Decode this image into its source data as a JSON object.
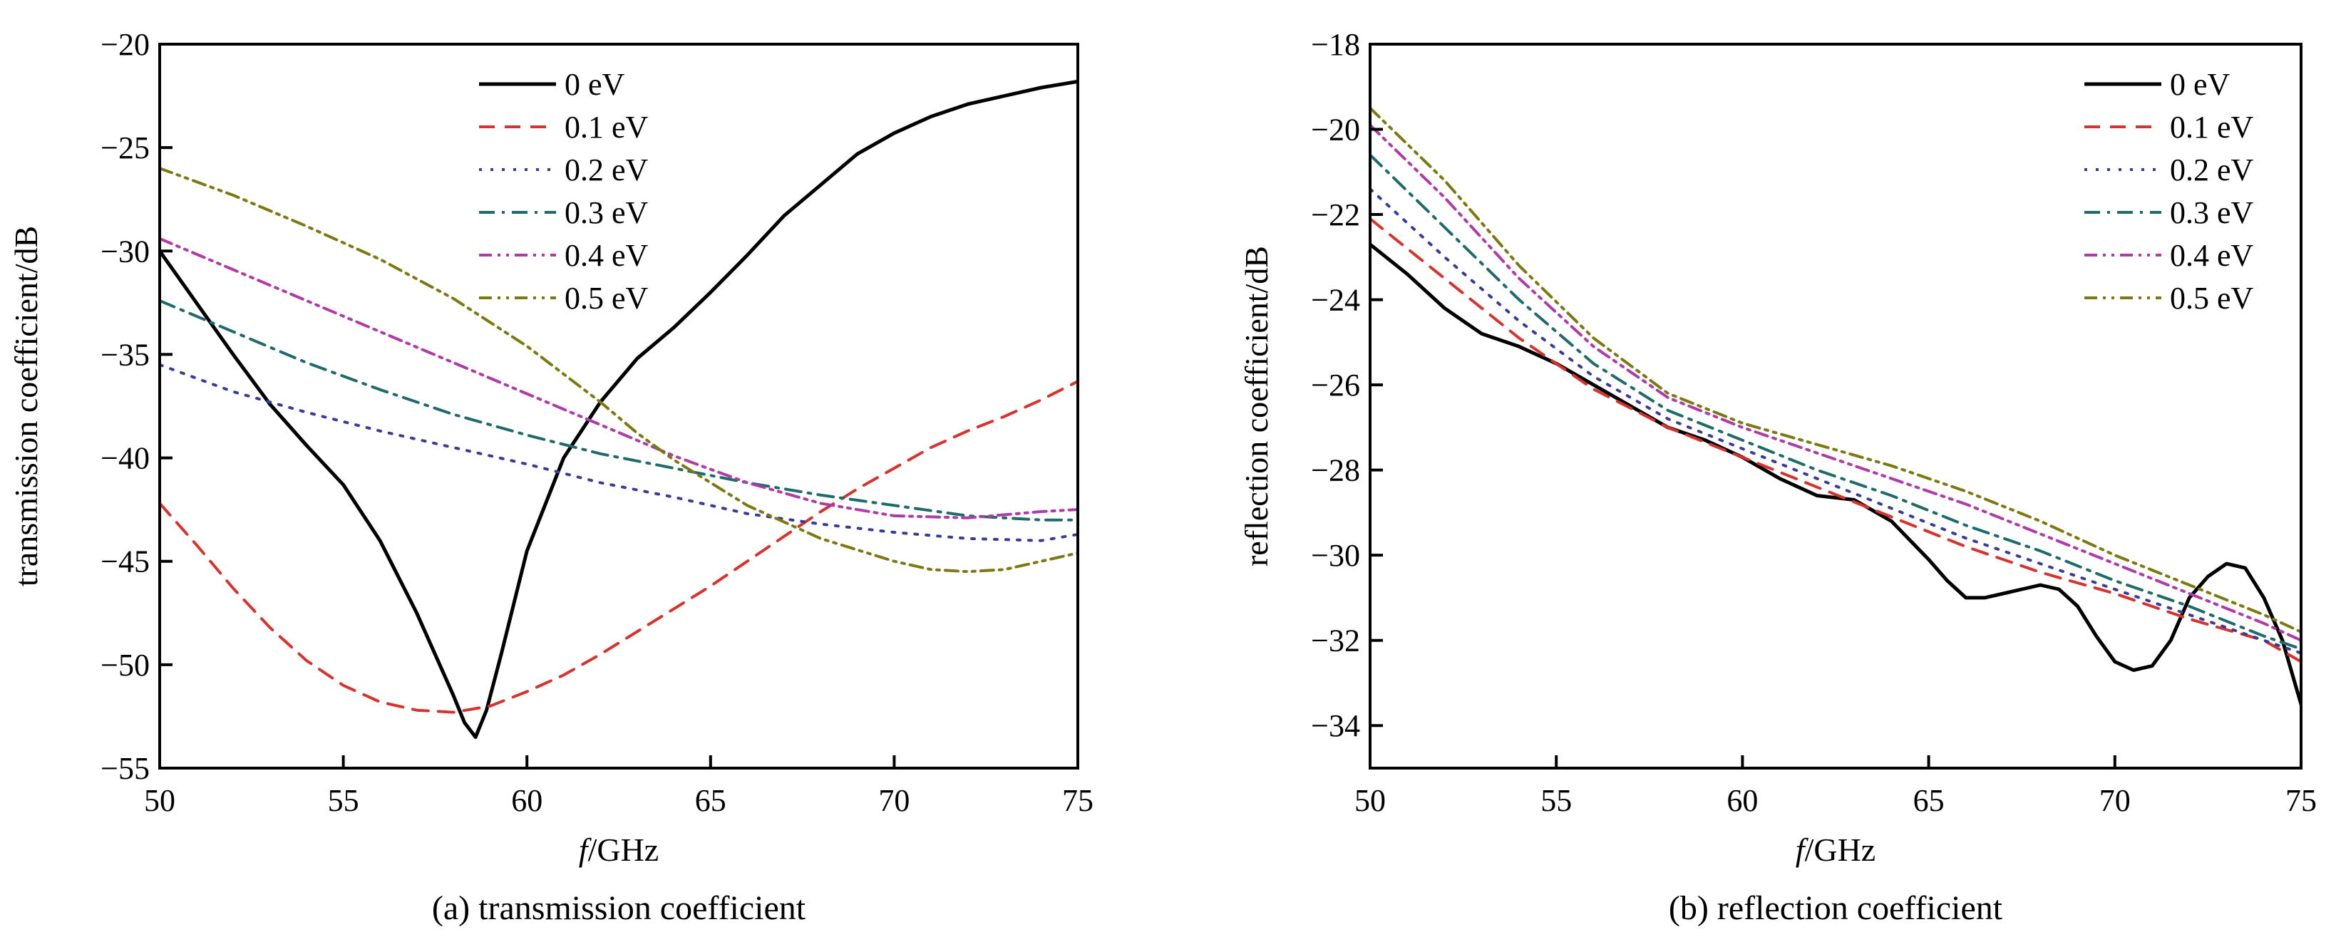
{
  "figure": {
    "colors": {
      "0 eV": "#000000",
      "0.1 eV": "#d9312b",
      "0.2 eV": "#3a3a9a",
      "0.3 eV": "#1e6b6b",
      "0.4 eV": "#b03aa8",
      "0.5 eV": "#7a7a10"
    }
  },
  "chart_data": [
    {
      "type": "line",
      "caption": "(a) transmission coefficient",
      "xlabel": "f/GHz",
      "ylabel": "transmission coefficient/dB",
      "xlim": [
        50,
        75
      ],
      "ylim": [
        -55,
        -20
      ],
      "xticks": [
        50,
        55,
        60,
        65,
        70,
        75
      ],
      "yticks": [
        -55,
        -50,
        -45,
        -40,
        -35,
        -30,
        -25,
        -20
      ],
      "xtick_labels": [
        "50",
        "55",
        "60",
        "65",
        "70",
        "75"
      ],
      "ytick_labels": [
        "−55",
        "−50",
        "−45",
        "−40",
        "−35",
        "−30",
        "−25",
        "−20"
      ],
      "grid": false,
      "legend_position": "top-center",
      "series": [
        {
          "name": "0 eV",
          "dash": "solid",
          "x": [
            50,
            51,
            52,
            53,
            54,
            55,
            56,
            57,
            57.5,
            58,
            58.3,
            58.6,
            58.9,
            59.3,
            60,
            61,
            62,
            63,
            64,
            65,
            66,
            67,
            68,
            69,
            70,
            71,
            72,
            73,
            74,
            75
          ],
          "y": [
            -30,
            -32.5,
            -35,
            -37.4,
            -39.4,
            -41.3,
            -44,
            -47.5,
            -49.5,
            -51.5,
            -52.8,
            -53.5,
            -52.2,
            -49.5,
            -44.5,
            -40,
            -37.3,
            -35.2,
            -33.7,
            -32,
            -30.2,
            -28.3,
            -26.8,
            -25.3,
            -24.3,
            -23.5,
            -22.9,
            -22.5,
            -22.1,
            -21.8
          ]
        },
        {
          "name": "0.1 eV",
          "dash": "dash",
          "x": [
            50,
            51,
            52,
            53,
            54,
            55,
            56,
            57,
            58,
            59,
            60,
            61,
            62,
            63,
            64,
            65,
            66,
            67,
            68,
            69,
            70,
            71,
            72,
            73,
            74,
            75
          ],
          "y": [
            -42.2,
            -44.2,
            -46.3,
            -48.2,
            -49.8,
            -51,
            -51.8,
            -52.2,
            -52.3,
            -52,
            -51.3,
            -50.5,
            -49.5,
            -48.4,
            -47.3,
            -46.2,
            -45,
            -43.8,
            -42.6,
            -41.5,
            -40.5,
            -39.5,
            -38.7,
            -38,
            -37.2,
            -36.3
          ]
        },
        {
          "name": "0.2 eV",
          "dash": "dot",
          "x": [
            50,
            52,
            54,
            56,
            58,
            60,
            62,
            64,
            66,
            68,
            70,
            72,
            74,
            75
          ],
          "y": [
            -35.5,
            -36.8,
            -37.8,
            -38.7,
            -39.5,
            -40.3,
            -41.2,
            -41.9,
            -42.7,
            -43.2,
            -43.6,
            -43.9,
            -44,
            -43.7
          ]
        },
        {
          "name": "0.3 eV",
          "dash": "dashdot",
          "x": [
            50,
            52,
            54,
            56,
            58,
            60,
            62,
            64,
            66,
            68,
            70,
            72,
            74,
            75
          ],
          "y": [
            -32.4,
            -33.9,
            -35.4,
            -36.7,
            -37.9,
            -38.9,
            -39.8,
            -40.5,
            -41.2,
            -41.8,
            -42.3,
            -42.8,
            -43,
            -43
          ]
        },
        {
          "name": "0.4 eV",
          "dash": "dashdotdot",
          "x": [
            50,
            52,
            54,
            56,
            58,
            60,
            62,
            64,
            66,
            68,
            70,
            72,
            74,
            75
          ],
          "y": [
            -29.4,
            -30.9,
            -32.4,
            -33.9,
            -35.4,
            -36.9,
            -38.4,
            -39.9,
            -41.2,
            -42.2,
            -42.8,
            -42.9,
            -42.6,
            -42.5
          ]
        },
        {
          "name": "0.5 eV",
          "dash": "dashdotdot",
          "x": [
            50,
            52,
            54,
            56,
            58,
            60,
            62,
            63,
            64,
            66,
            68,
            70,
            71,
            72,
            73,
            74,
            75
          ],
          "y": [
            -26,
            -27.3,
            -28.8,
            -30.4,
            -32.3,
            -34.6,
            -37.3,
            -38.8,
            -40.1,
            -42.3,
            -43.9,
            -45,
            -45.4,
            -45.5,
            -45.4,
            -45,
            -44.6
          ]
        }
      ]
    },
    {
      "type": "line",
      "caption": "(b) reflection coefficient",
      "xlabel": "f/GHz",
      "ylabel": "reflection coefficient/dB",
      "xlim": [
        50,
        75
      ],
      "ylim": [
        -35,
        -18
      ],
      "xticks": [
        50,
        55,
        60,
        65,
        70,
        75
      ],
      "yticks": [
        -34,
        -32,
        -30,
        -28,
        -26,
        -24,
        -22,
        -20,
        -18
      ],
      "xtick_labels": [
        "50",
        "55",
        "60",
        "65",
        "70",
        "75"
      ],
      "ytick_labels": [
        "−34",
        "−32",
        "−30",
        "−28",
        "−26",
        "−24",
        "−22",
        "−20",
        "−18"
      ],
      "grid": false,
      "legend_position": "top-right",
      "series": [
        {
          "name": "0 eV",
          "dash": "solid",
          "x": [
            50,
            51,
            52,
            53,
            54,
            55,
            56,
            57,
            58,
            59,
            60,
            61,
            62,
            63,
            64,
            65,
            65.5,
            66,
            66.5,
            67,
            67.5,
            68,
            68.5,
            69,
            69.5,
            70,
            70.5,
            71,
            71.5,
            72,
            72.5,
            73,
            73.5,
            74,
            74.5,
            75
          ],
          "y": [
            -22.7,
            -23.4,
            -24.2,
            -24.8,
            -25.1,
            -25.5,
            -26,
            -26.5,
            -27,
            -27.3,
            -27.7,
            -28.2,
            -28.6,
            -28.7,
            -29.2,
            -30.1,
            -30.6,
            -31,
            -31,
            -30.9,
            -30.8,
            -30.7,
            -30.8,
            -31.2,
            -31.9,
            -32.5,
            -32.7,
            -32.6,
            -32,
            -31,
            -30.5,
            -30.2,
            -30.3,
            -31,
            -32,
            -33.5
          ]
        },
        {
          "name": "0.1 eV",
          "dash": "dash",
          "x": [
            50,
            52,
            54,
            56,
            58,
            60,
            62,
            64,
            66,
            68,
            70,
            72,
            74,
            75
          ],
          "y": [
            -22.1,
            -23.5,
            -24.9,
            -26.1,
            -27,
            -27.7,
            -28.4,
            -29.1,
            -29.8,
            -30.4,
            -30.9,
            -31.5,
            -32,
            -32.5
          ]
        },
        {
          "name": "0.2 eV",
          "dash": "dot",
          "x": [
            50,
            52,
            54,
            56,
            58,
            60,
            62,
            64,
            66,
            68,
            70,
            72,
            74,
            75
          ],
          "y": [
            -21.4,
            -23,
            -24.5,
            -25.8,
            -26.8,
            -27.5,
            -28.2,
            -28.9,
            -29.6,
            -30.2,
            -30.8,
            -31.4,
            -32,
            -32.3
          ]
        },
        {
          "name": "0.3 eV",
          "dash": "dashdot",
          "x": [
            50,
            52,
            54,
            56,
            58,
            60,
            62,
            64,
            66,
            68,
            70,
            72,
            74,
            75
          ],
          "y": [
            -20.6,
            -22.3,
            -24,
            -25.5,
            -26.6,
            -27.3,
            -28,
            -28.6,
            -29.3,
            -29.9,
            -30.6,
            -31.2,
            -31.9,
            -32.2
          ]
        },
        {
          "name": "0.4 eV",
          "dash": "dashdotdot",
          "x": [
            50,
            52,
            54,
            56,
            58,
            60,
            62,
            64,
            66,
            68,
            70,
            72,
            74,
            75
          ],
          "y": [
            -19.9,
            -21.6,
            -23.5,
            -25.1,
            -26.3,
            -27,
            -27.6,
            -28.2,
            -28.8,
            -29.5,
            -30.2,
            -30.9,
            -31.6,
            -32
          ]
        },
        {
          "name": "0.5 eV",
          "dash": "dashdotdot",
          "x": [
            50,
            52,
            54,
            56,
            58,
            60,
            62,
            64,
            66,
            68,
            70,
            72,
            74,
            75
          ],
          "y": [
            -19.5,
            -21.2,
            -23.2,
            -24.9,
            -26.2,
            -26.9,
            -27.4,
            -27.9,
            -28.5,
            -29.2,
            -30,
            -30.7,
            -31.4,
            -31.8
          ]
        }
      ]
    }
  ]
}
